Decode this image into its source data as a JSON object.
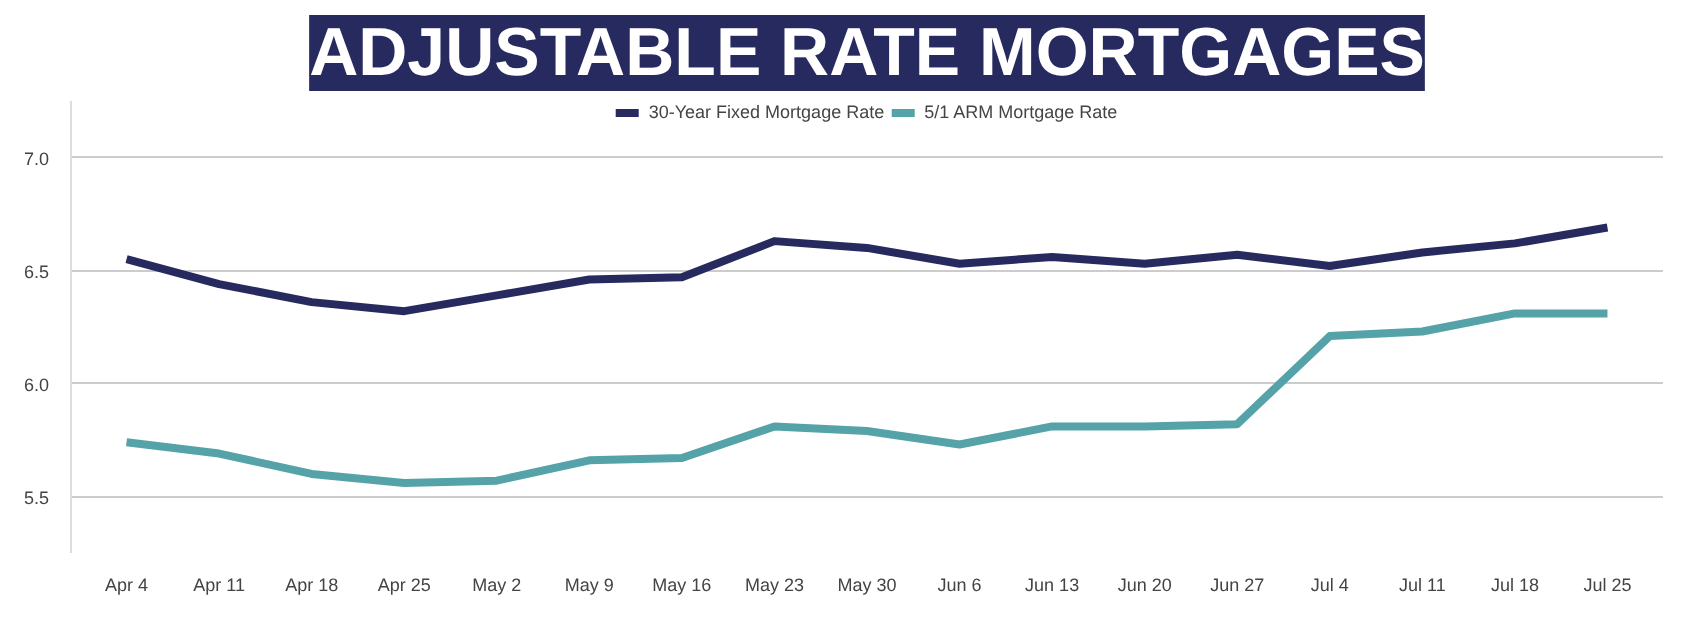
{
  "chart_data": {
    "type": "line",
    "title": "ADJUSTABLE RATE MORTGAGES",
    "categories": [
      "Apr 4",
      "Apr 11",
      "Apr 18",
      "Apr 25",
      "May 2",
      "May 9",
      "May 16",
      "May 23",
      "May 30",
      "Jun 6",
      "Jun 13",
      "Jun 20",
      "Jun 27",
      "Jul 4",
      "Jul 11",
      "Jul 18",
      "Jul 25"
    ],
    "series": [
      {
        "name": "30-Year Fixed Mortgage Rate",
        "color": "#262a5e",
        "values": [
          6.55,
          6.44,
          6.36,
          6.32,
          6.39,
          6.46,
          6.47,
          6.63,
          6.6,
          6.53,
          6.56,
          6.53,
          6.57,
          6.52,
          6.58,
          6.62,
          6.69
        ]
      },
      {
        "name": "5/1 ARM Mortgage Rate",
        "color": "#55a3a8",
        "values": [
          5.74,
          5.69,
          5.6,
          5.56,
          5.57,
          5.66,
          5.67,
          5.81,
          5.79,
          5.73,
          5.81,
          5.81,
          5.82,
          6.21,
          6.23,
          6.31,
          6.31
        ]
      }
    ],
    "ylim": [
      5.25,
      7.25
    ],
    "yticks": [
      {
        "value": 5.5,
        "label": "5.5"
      },
      {
        "value": 6,
        "label": "6.0"
      },
      {
        "value": 6.5,
        "label": "6.5"
      },
      {
        "value": 7,
        "label": "7.0"
      }
    ],
    "grid": "y",
    "legend": "top",
    "line_style": "solid"
  }
}
